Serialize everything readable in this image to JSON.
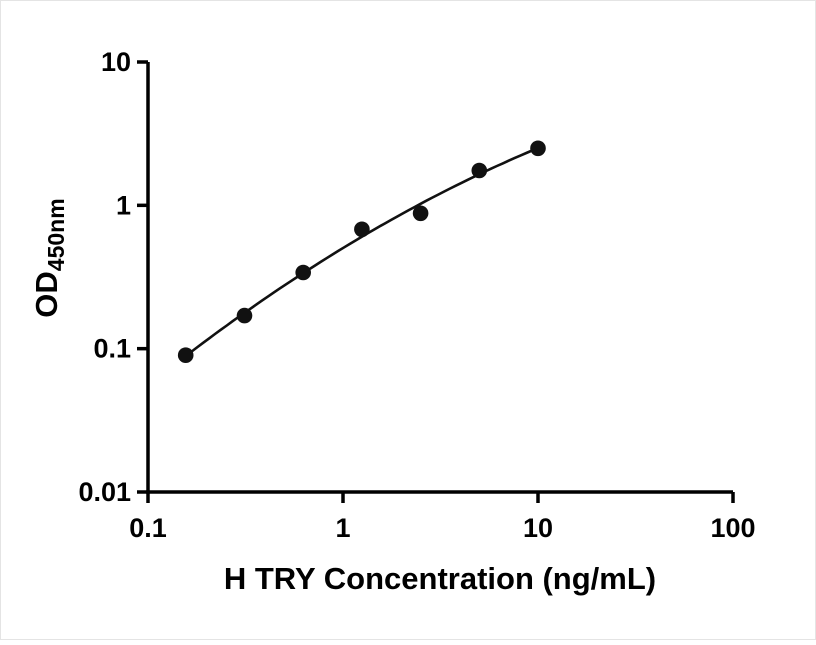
{
  "chart_data": {
    "type": "scatter",
    "title": "",
    "xlabel": "H TRY Concentration (ng/mL)",
    "ylabel_main": "OD",
    "ylabel_sub": "450nm",
    "xscale": "log",
    "yscale": "log",
    "xlim": [
      0.1,
      100
    ],
    "ylim": [
      0.01,
      10
    ],
    "x": [
      0.156,
      0.3125,
      0.625,
      1.25,
      2.5,
      5,
      10
    ],
    "y": [
      0.09,
      0.17,
      0.34,
      0.68,
      0.88,
      1.75,
      2.5
    ],
    "x_tick_values": [
      0.1,
      1,
      10,
      100
    ],
    "x_tick_labels": [
      "0.1",
      "1",
      "10",
      "100"
    ],
    "y_tick_values": [
      0.01,
      0.1,
      1,
      10
    ],
    "y_tick_labels": [
      "0.01",
      "0.1",
      "1",
      "10"
    ],
    "grid": false,
    "legend": false,
    "fit_curve": true,
    "axis_color": "#000000",
    "marker_color": "#111111",
    "line_color": "#111111",
    "background_color": "#ffffff"
  }
}
